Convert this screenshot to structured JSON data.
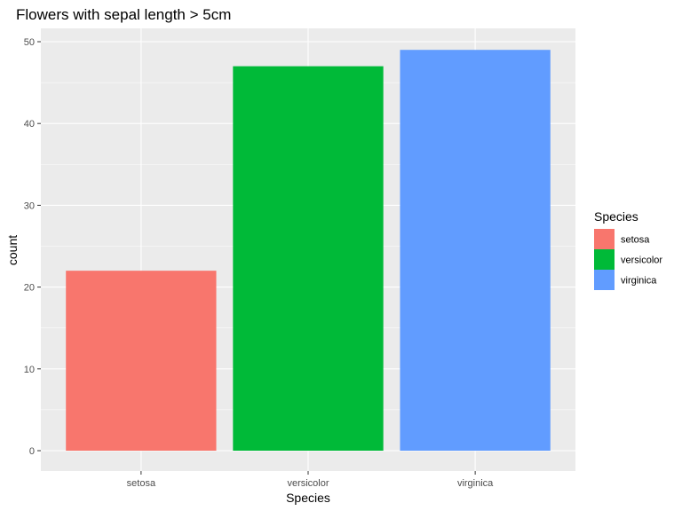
{
  "chart_data": {
    "type": "bar",
    "title": "Flowers with sepal length > 5cm",
    "xlabel": "Species",
    "ylabel": "count",
    "categories": [
      "setosa",
      "versicolor",
      "virginica"
    ],
    "values": [
      22,
      47,
      49
    ],
    "colors": [
      "#F8766D",
      "#00BA38",
      "#619CFF"
    ],
    "ylim": [
      0,
      51
    ],
    "yticks": [
      "0",
      "10",
      "20",
      "30",
      "40",
      "50"
    ],
    "grid": true,
    "panel_background": "#EBEBEB",
    "gridline_color": "#FFFFFF",
    "legend": {
      "title": "Species",
      "position": "right",
      "entries": [
        "setosa",
        "versicolor",
        "virginica"
      ]
    }
  }
}
